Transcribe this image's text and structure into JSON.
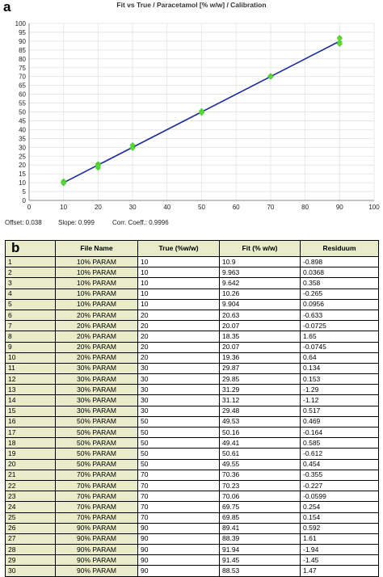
{
  "panel_a_letter": "a",
  "panel_b_letter": "b",
  "chart_data": {
    "type": "scatter",
    "title": "Fit vs True  /  Paracetamol [% w/w]  /  Calibration",
    "xlim": [
      0,
      100
    ],
    "ylim": [
      0,
      100
    ],
    "x_ticks": [
      0,
      10,
      20,
      30,
      40,
      50,
      60,
      70,
      80,
      90,
      100
    ],
    "y_ticks": [
      0,
      5,
      10,
      15,
      20,
      25,
      30,
      35,
      40,
      45,
      50,
      55,
      60,
      65,
      70,
      75,
      80,
      85,
      90,
      95,
      100
    ],
    "grid": true,
    "points": [
      [
        10,
        10.9
      ],
      [
        10,
        9.963
      ],
      [
        10,
        9.642
      ],
      [
        10,
        10.26
      ],
      [
        10,
        9.904
      ],
      [
        20,
        20.63
      ],
      [
        20,
        20.07
      ],
      [
        20,
        18.35
      ],
      [
        20,
        20.07
      ],
      [
        20,
        19.36
      ],
      [
        30,
        29.87
      ],
      [
        30,
        29.85
      ],
      [
        30,
        31.29
      ],
      [
        30,
        31.12
      ],
      [
        30,
        29.48
      ],
      [
        50,
        49.53
      ],
      [
        50,
        50.16
      ],
      [
        50,
        49.41
      ],
      [
        50,
        50.61
      ],
      [
        50,
        49.55
      ],
      [
        70,
        70.36
      ],
      [
        70,
        70.23
      ],
      [
        70,
        70.06
      ],
      [
        70,
        69.75
      ],
      [
        70,
        69.85
      ],
      [
        90,
        89.41
      ],
      [
        90,
        88.39
      ],
      [
        90,
        91.94
      ],
      [
        90,
        91.45
      ],
      [
        90,
        88.53
      ]
    ],
    "fit_line": {
      "offset": 0.038,
      "slope": 0.999
    },
    "point_color": "#55dd33",
    "line_color": "#1a2aa0",
    "stats": {
      "offset": "Offset: 0.038",
      "slope": "Slope: 0.999",
      "corr": "Corr. Coeff.: 0.9996"
    }
  },
  "table": {
    "headers": [
      "File Name",
      "True (%w/w)",
      "Fit (% w/w)",
      "Residuum"
    ],
    "rows": [
      [
        "1",
        "10% PARAM",
        "10",
        "10.9",
        "-0.898"
      ],
      [
        "2",
        "10% PARAM",
        "10",
        "9.963",
        "0.0368"
      ],
      [
        "3",
        "10% PARAM",
        "10",
        "9.642",
        "0.358"
      ],
      [
        "4",
        "10% PARAM",
        "10",
        "10.26",
        "-0.265"
      ],
      [
        "5",
        "10% PARAM",
        "10",
        "9.904",
        "0.0956"
      ],
      [
        "6",
        "20% PARAM",
        "20",
        "20.63",
        "-0.633"
      ],
      [
        "7",
        "20% PARAM",
        "20",
        "20.07",
        "-0.0725"
      ],
      [
        "8",
        "20% PARAM",
        "20",
        "18.35",
        "1.65"
      ],
      [
        "9",
        "20% PARAM",
        "20",
        "20.07",
        "-0.0745"
      ],
      [
        "10",
        "20% PARAM",
        "20",
        "19.36",
        "0.64"
      ],
      [
        "11",
        "30% PARAM",
        "30",
        "29.87",
        "0.134"
      ],
      [
        "12",
        "30% PARAM",
        "30",
        "29.85",
        "0.153"
      ],
      [
        "13",
        "30% PARAM",
        "30",
        "31.29",
        "-1.29"
      ],
      [
        "14",
        "30% PARAM",
        "30",
        "31.12",
        "-1.12"
      ],
      [
        "15",
        "30% PARAM",
        "30",
        "29.48",
        "0.517"
      ],
      [
        "16",
        "50% PARAM",
        "50",
        "49.53",
        "0.469"
      ],
      [
        "17",
        "50% PARAM",
        "50",
        "50.16",
        "-0.164"
      ],
      [
        "18",
        "50% PARAM",
        "50",
        "49.41",
        "0.585"
      ],
      [
        "19",
        "50% PARAM",
        "50",
        "50.61",
        "-0.612"
      ],
      [
        "20",
        "50% PARAM",
        "50",
        "49.55",
        "0.454"
      ],
      [
        "21",
        "70% PARAM",
        "70",
        "70.36",
        "-0.355"
      ],
      [
        "22",
        "70% PARAM",
        "70",
        "70.23",
        "-0.227"
      ],
      [
        "23",
        "70% PARAM",
        "70",
        "70.06",
        "-0.0599"
      ],
      [
        "24",
        "70% PARAM",
        "70",
        "69.75",
        "0.254"
      ],
      [
        "25",
        "70% PARAM",
        "70",
        "69.85",
        "0.154"
      ],
      [
        "26",
        "90% PARAM",
        "90",
        "89.41",
        "0.592"
      ],
      [
        "27",
        "90% PARAM",
        "90",
        "88.39",
        "1.61"
      ],
      [
        "28",
        "90% PARAM",
        "90",
        "91.94",
        "-1.94"
      ],
      [
        "29",
        "90% PARAM",
        "90",
        "91.45",
        "-1.45"
      ],
      [
        "30",
        "90% PARAM",
        "90",
        "88.53",
        "1.47"
      ]
    ]
  }
}
